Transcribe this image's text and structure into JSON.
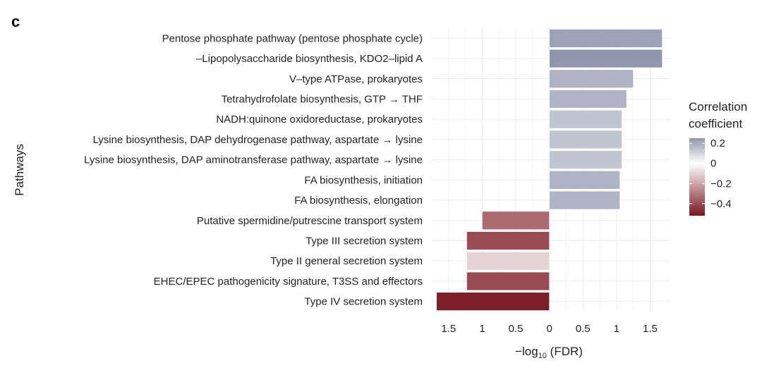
{
  "panel_label": "c",
  "chart_data": {
    "type": "bar",
    "orientation": "horizontal",
    "ylabel": "Pathways",
    "xlabel_parts": {
      "pre": "−log",
      "sub": "10",
      "post": " (FDR)"
    },
    "xlim": [
      -1.75,
      1.8
    ],
    "x_ticks": [
      {
        "value": -1.5,
        "label": "1.5"
      },
      {
        "value": -1.0,
        "label": "1"
      },
      {
        "value": -0.5,
        "label": "0.5"
      },
      {
        "value": 0,
        "label": "0"
      },
      {
        "value": 0.5,
        "label": "0.5"
      },
      {
        "value": 1.0,
        "label": "1"
      },
      {
        "value": 1.5,
        "label": "1.5"
      }
    ],
    "categories": [
      "Pentose phosphate pathway (pentose phosphate cycle)",
      "–Lipopolysaccharide biosynthesis, KDO2–lipid A",
      "V–type ATPase, prokaryotes",
      "Tetrahydrofolate biosynthesis, GTP → THF",
      "NADH:quinone oxidoreductase, prokaryotes",
      "Lysine biosynthesis, DAP dehydrogenase pathway, aspartate → lysine",
      "Lysine biosynthesis, DAP aminotransferase pathway, aspartate → lysine",
      "FA biosynthesis, initiation",
      "FA biosynthesis, elongation",
      "Putative spermidine/putrescine transport system",
      "Type III secretion system",
      "Type II general secretion system",
      "EHEC/EPEC pathogenicity signature, T3SS and effectors",
      "Type IV secretion system"
    ],
    "values": [
      1.68,
      1.68,
      1.25,
      1.15,
      1.08,
      1.08,
      1.08,
      1.05,
      1.05,
      -1.0,
      -1.23,
      -1.23,
      -1.23,
      -1.68
    ],
    "correlation": [
      0.22,
      0.25,
      0.18,
      0.18,
      0.14,
      0.14,
      0.14,
      0.18,
      0.18,
      -0.33,
      -0.4,
      -0.1,
      -0.4,
      -0.5
    ],
    "grid": true,
    "legend": {
      "title_lines": [
        "Correlation",
        "coefficient"
      ],
      "placement": "right",
      "range": [
        -0.52,
        0.25
      ],
      "ticks": [
        {
          "value": 0.2,
          "label": "0.2"
        },
        {
          "value": 0,
          "label": "0"
        },
        {
          "value": -0.2,
          "label": "−0.2"
        },
        {
          "value": -0.4,
          "label": "−0.4"
        }
      ],
      "colors": {
        "high": "#8f97ae",
        "mid": "#ffffff",
        "low": "#7a1620"
      }
    }
  }
}
